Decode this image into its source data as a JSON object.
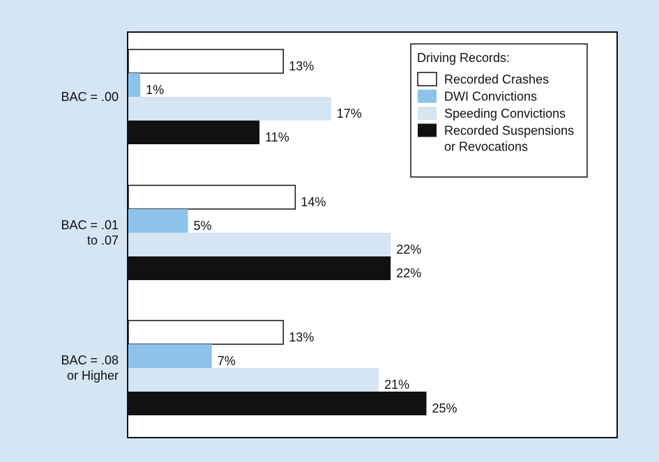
{
  "chart_data": {
    "type": "bar",
    "orientation": "horizontal",
    "categories": [
      [
        "BAC = .00"
      ],
      [
        "BAC = .01",
        "to .07"
      ],
      [
        "BAC = .08",
        "or Higher"
      ]
    ],
    "series": [
      {
        "name": "Recorded Crashes",
        "values": [
          13,
          14,
          13
        ],
        "labels": [
          "13%",
          "14%",
          "13%"
        ],
        "color": "#ffffff",
        "stroke": "#111111"
      },
      {
        "name": "DWI Convictions",
        "values": [
          1,
          5,
          7
        ],
        "labels": [
          "1%",
          "5%",
          "7%"
        ],
        "color": "#8dc3ea",
        "stroke": "none"
      },
      {
        "name": "Speeding Convictions",
        "values": [
          17,
          22,
          21
        ],
        "labels": [
          "17%",
          "22%",
          "21%"
        ],
        "color": "#d4e5f4",
        "stroke": "none"
      },
      {
        "name": [
          "Recorded Suspensions",
          "or Revocations"
        ],
        "values": [
          11,
          22,
          25
        ],
        "labels": [
          "11%",
          "22%",
          "25%"
        ],
        "color": "#111111",
        "stroke": "none"
      }
    ],
    "legend": {
      "title": "Driving Records:",
      "position": "top-right"
    },
    "xlim": [
      0,
      45
    ],
    "grid": false,
    "axes_visible": false
  },
  "colors": {
    "page_background": "#d4e5f4",
    "plot_background": "#ffffff",
    "frame": "#111111"
  }
}
